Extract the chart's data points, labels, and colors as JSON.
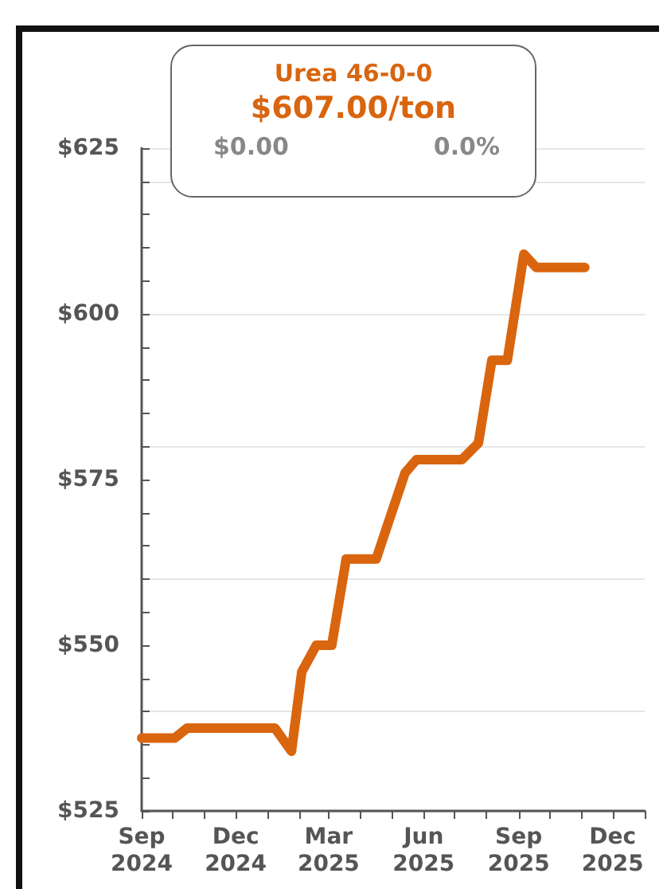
{
  "chart_data": {
    "type": "line",
    "title": "Urea 46-0-0",
    "subtitle": "$607.00/ton",
    "annotations": [
      "$0.00",
      "0.0%"
    ],
    "x": [
      "2024-09-01",
      "2024-10-03",
      "2024-10-15",
      "2025-01-08",
      "2025-01-24",
      "2025-02-03",
      "2025-02-17",
      "2025-03-04",
      "2025-03-18",
      "2025-04-16",
      "2025-05-01",
      "2025-05-14",
      "2025-05-25",
      "2025-07-08",
      "2025-07-24",
      "2025-08-06",
      "2025-08-21",
      "2025-09-06",
      "2025-09-18",
      "2025-11-04"
    ],
    "series": [
      {
        "color": "#d9650f",
        "values": [
          536,
          536,
          537.5,
          537.5,
          534,
          546,
          550,
          550,
          563,
          563,
          570,
          576,
          578,
          578,
          580.5,
          593,
          593,
          609,
          607,
          607
        ]
      }
    ],
    "xlim": [
      "2024-09-01",
      "2026-01-01"
    ],
    "xticks": [
      {
        "value": "2024-09-01",
        "label": "Sep\n2024"
      },
      {
        "value": "2024-10-01",
        "label": null
      },
      {
        "value": "2024-11-01",
        "label": null
      },
      {
        "value": "2024-12-01",
        "label": "Dec\n2024"
      },
      {
        "value": "2025-01-01",
        "label": null
      },
      {
        "value": "2025-02-01",
        "label": null
      },
      {
        "value": "2025-03-01",
        "label": "Mar\n2025"
      },
      {
        "value": "2025-04-01",
        "label": null
      },
      {
        "value": "2025-05-01",
        "label": null
      },
      {
        "value": "2025-06-01",
        "label": "Jun\n2025"
      },
      {
        "value": "2025-07-01",
        "label": null
      },
      {
        "value": "2025-08-01",
        "label": null
      },
      {
        "value": "2025-09-01",
        "label": "Sep\n2025"
      },
      {
        "value": "2025-10-01",
        "label": null
      },
      {
        "value": "2025-11-01",
        "label": null
      },
      {
        "value": "2025-12-01",
        "label": "Dec\n2025"
      },
      {
        "value": "2026-01-01",
        "label": null
      }
    ],
    "ylim": [
      525,
      625
    ],
    "yticks": [
      {
        "value": 525,
        "label": "$525"
      },
      {
        "value": 530,
        "label": null
      },
      {
        "value": 535,
        "label": null
      },
      {
        "value": 540,
        "label": null
      },
      {
        "value": 545,
        "label": null
      },
      {
        "value": 550,
        "label": "$550"
      },
      {
        "value": 555,
        "label": null
      },
      {
        "value": 560,
        "label": null
      },
      {
        "value": 565,
        "label": null
      },
      {
        "value": 570,
        "label": null
      },
      {
        "value": 575,
        "label": "$575"
      },
      {
        "value": 580,
        "label": null
      },
      {
        "value": 585,
        "label": null
      },
      {
        "value": 590,
        "label": null
      },
      {
        "value": 595,
        "label": null
      },
      {
        "value": 600,
        "label": "$600"
      },
      {
        "value": 605,
        "label": null
      },
      {
        "value": 610,
        "label": null
      },
      {
        "value": 615,
        "label": null
      },
      {
        "value": 620,
        "label": null
      },
      {
        "value": 625,
        "label": "$625"
      }
    ],
    "grid": "y",
    "marker": "none",
    "line_style": "solid"
  }
}
